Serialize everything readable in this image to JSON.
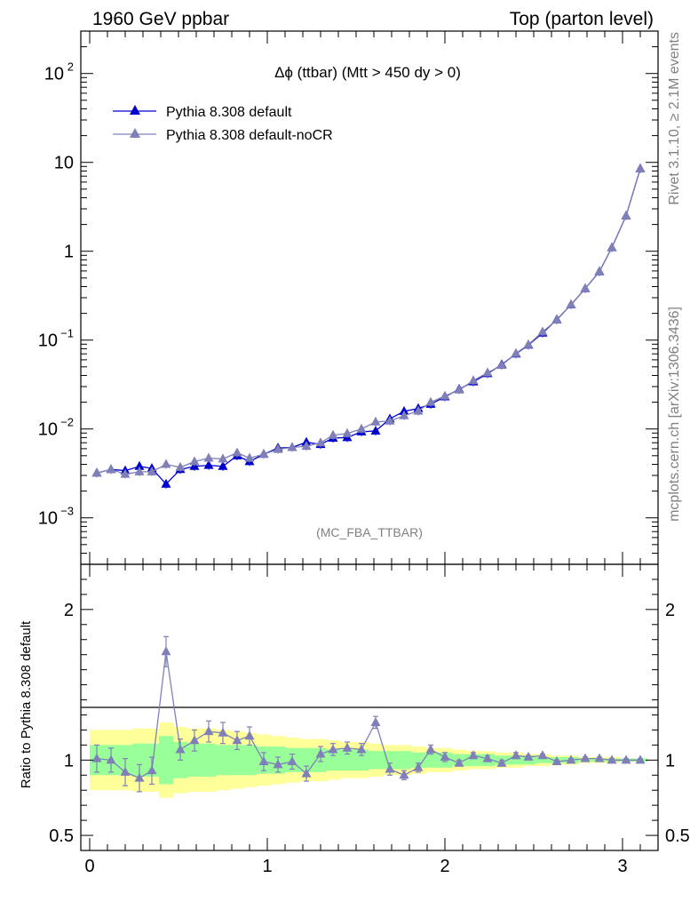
{
  "header": {
    "left": "1960 GeV ppbar",
    "right": "Top (parton level)"
  },
  "side_text": {
    "rivet": "Rivet 3.1.10, ≥ 2.1M events",
    "mcplots": "mcplots.cern.ch [arXiv:1306.3436]"
  },
  "chart_data": [
    {
      "type": "line",
      "title": "Δϕ (ttbar) (Mtt > 450 dy > 0)",
      "watermark": "(MC_FBA_TTBAR)",
      "yscale": "log",
      "ylim": [
        0.0003,
        300
      ],
      "xlim": [
        -0.05,
        3.2
      ],
      "yticks": [
        {
          "value": 100,
          "label": "10",
          "exp": "2"
        },
        {
          "value": 10,
          "label": "10",
          "exp": ""
        },
        {
          "value": 1,
          "label": "1",
          "exp": ""
        },
        {
          "value": 0.1,
          "label": "10",
          "exp": "−1"
        },
        {
          "value": 0.01,
          "label": "10",
          "exp": "−2"
        },
        {
          "value": 0.001,
          "label": "10",
          "exp": "−3"
        }
      ],
      "legend_position": "top-left",
      "x": [
        0.04,
        0.12,
        0.2,
        0.28,
        0.35,
        0.43,
        0.51,
        0.59,
        0.67,
        0.75,
        0.83,
        0.9,
        0.98,
        1.06,
        1.14,
        1.22,
        1.3,
        1.37,
        1.45,
        1.53,
        1.61,
        1.69,
        1.77,
        1.85,
        1.92,
        2.0,
        2.08,
        2.16,
        2.24,
        2.32,
        2.4,
        2.47,
        2.55,
        2.63,
        2.71,
        2.79,
        2.87,
        2.94,
        3.02,
        3.1
      ],
      "series": [
        {
          "name": "Pythia 8.308 default",
          "color": "#0000cc",
          "values": [
            0.0032,
            0.0035,
            0.0034,
            0.0038,
            0.0036,
            0.0024,
            0.0035,
            0.0038,
            0.0039,
            0.0038,
            0.005,
            0.0043,
            0.0052,
            0.0061,
            0.0062,
            0.0071,
            0.0067,
            0.0079,
            0.008,
            0.0093,
            0.0095,
            0.013,
            0.0158,
            0.017,
            0.019,
            0.023,
            0.028,
            0.034,
            0.042,
            0.053,
            0.07,
            0.088,
            0.12,
            0.17,
            0.25,
            0.38,
            0.59,
            1.1,
            2.5,
            8.5
          ]
        },
        {
          "name": "Pythia 8.308 default-noCR",
          "color": "#8080b8",
          "values": [
            0.0032,
            0.0035,
            0.0031,
            0.0033,
            0.0033,
            0.004,
            0.0037,
            0.0043,
            0.0047,
            0.0046,
            0.0054,
            0.0047,
            0.0052,
            0.0059,
            0.0062,
            0.0064,
            0.007,
            0.0085,
            0.0089,
            0.01,
            0.012,
            0.0123,
            0.0141,
            0.0159,
            0.02,
            0.0235,
            0.0275,
            0.035,
            0.043,
            0.052,
            0.071,
            0.089,
            0.124,
            0.168,
            0.251,
            0.381,
            0.595,
            1.1,
            2.5,
            8.5
          ]
        }
      ]
    },
    {
      "type": "line",
      "ylabel": "Ratio to Pythia 8.308 default",
      "ylim": [
        0.4,
        2.3
      ],
      "xlim": [
        -0.05,
        3.2
      ],
      "yticks": [
        {
          "value": 2,
          "label": "2"
        },
        {
          "value": 1,
          "label": "1"
        },
        {
          "value": 0.5,
          "label": "0.5"
        }
      ],
      "xticks": [
        {
          "value": 0,
          "label": "0"
        },
        {
          "value": 1,
          "label": "1"
        },
        {
          "value": 2,
          "label": "2"
        },
        {
          "value": 3,
          "label": "3"
        }
      ],
      "x": [
        0.04,
        0.12,
        0.2,
        0.28,
        0.35,
        0.43,
        0.51,
        0.59,
        0.67,
        0.75,
        0.83,
        0.9,
        0.98,
        1.06,
        1.14,
        1.22,
        1.3,
        1.37,
        1.45,
        1.53,
        1.61,
        1.69,
        1.77,
        1.85,
        1.92,
        2.0,
        2.08,
        2.16,
        2.24,
        2.32,
        2.4,
        2.47,
        2.55,
        2.63,
        2.71,
        2.79,
        2.87,
        2.94,
        3.02,
        3.1
      ],
      "series": [
        {
          "name": "Pythia 8.308 default-noCR",
          "color": "#8080b8",
          "values": [
            1.01,
            1.0,
            0.92,
            0.88,
            0.93,
            1.72,
            1.07,
            1.13,
            1.19,
            1.18,
            1.13,
            1.16,
            0.99,
            0.97,
            0.99,
            0.91,
            1.04,
            1.07,
            1.08,
            1.07,
            1.25,
            0.94,
            0.9,
            0.95,
            1.07,
            1.02,
            0.98,
            1.03,
            1.01,
            0.98,
            1.03,
            1.02,
            1.03,
            0.99,
            1.0,
            1.01,
            1.01,
            1.0,
            1.0,
            1.0
          ],
          "errors": [
            0.09,
            0.08,
            0.09,
            0.09,
            0.09,
            0.1,
            0.07,
            0.07,
            0.07,
            0.07,
            0.06,
            0.06,
            0.06,
            0.05,
            0.05,
            0.05,
            0.05,
            0.04,
            0.04,
            0.04,
            0.04,
            0.04,
            0.03,
            0.03,
            0.03,
            0.03,
            0.02,
            0.02,
            0.02,
            0.02,
            0.02,
            0.01,
            0.01,
            0.01,
            0.01,
            0.01,
            0.01,
            0.01,
            0.01,
            0.01
          ]
        }
      ],
      "band_inner": [
        0.1,
        0.1,
        0.1,
        0.11,
        0.11,
        0.16,
        0.12,
        0.11,
        0.11,
        0.1,
        0.1,
        0.1,
        0.09,
        0.09,
        0.08,
        0.08,
        0.08,
        0.07,
        0.07,
        0.07,
        0.06,
        0.06,
        0.06,
        0.05,
        0.05,
        0.05,
        0.04,
        0.04,
        0.04,
        0.03,
        0.03,
        0.03,
        0.02,
        0.02,
        0.02,
        0.01,
        0.01,
        0.01,
        0.01,
        0.01
      ],
      "band_outer": [
        0.2,
        0.2,
        0.2,
        0.21,
        0.21,
        0.25,
        0.22,
        0.21,
        0.21,
        0.2,
        0.19,
        0.18,
        0.17,
        0.16,
        0.15,
        0.14,
        0.14,
        0.13,
        0.12,
        0.12,
        0.11,
        0.1,
        0.1,
        0.09,
        0.08,
        0.08,
        0.07,
        0.06,
        0.06,
        0.05,
        0.05,
        0.04,
        0.04,
        0.03,
        0.03,
        0.02,
        0.02,
        0.02,
        0.01,
        0.01
      ],
      "band_colors": {
        "outer": "#ffff99",
        "inner": "#99ff99"
      }
    }
  ]
}
